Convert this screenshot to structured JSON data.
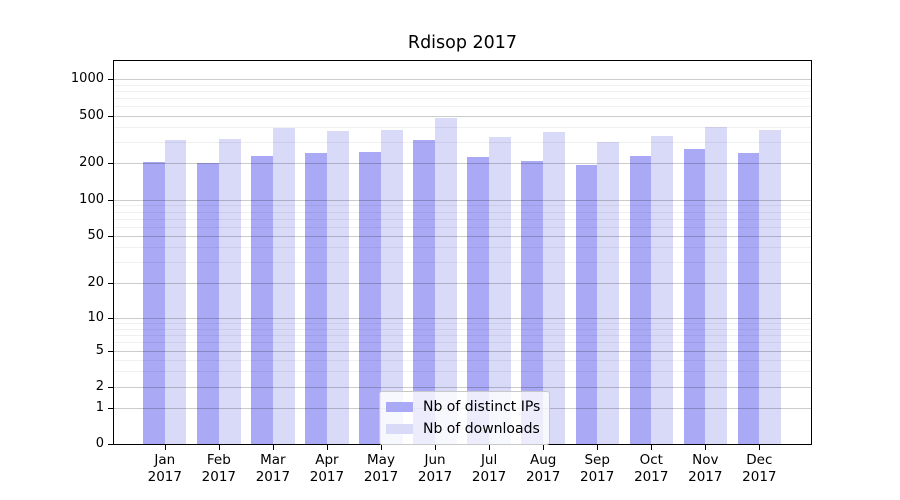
{
  "chart_data": {
    "type": "bar",
    "title": "Rdisop 2017",
    "categories": [
      "Jan",
      "Feb",
      "Mar",
      "Apr",
      "May",
      "Jun",
      "Jul",
      "Aug",
      "Sep",
      "Oct",
      "Nov",
      "Dec"
    ],
    "category_year": "2017",
    "series": [
      {
        "name": "Nb of distinct IPs",
        "color": "#a9a9f6",
        "values": [
          205,
          199,
          231,
          244,
          248,
          315,
          224,
          208,
          192,
          230,
          264,
          245
        ]
      },
      {
        "name": "Nb of downloads",
        "color": "#d9d9f8",
        "values": [
          311,
          320,
          392,
          376,
          382,
          480,
          329,
          364,
          300,
          339,
          406,
          383
        ]
      }
    ],
    "y_axis": {
      "ticks": [
        0,
        1,
        2,
        5,
        10,
        20,
        50,
        100,
        200,
        500,
        1000
      ],
      "minor_ticks": [
        3,
        4,
        6,
        7,
        8,
        9,
        30,
        40,
        60,
        70,
        80,
        90,
        300,
        400,
        600,
        700,
        800,
        900
      ],
      "scale": "log-like",
      "range": [
        0,
        1000
      ]
    },
    "xlabel": "",
    "ylabel": "",
    "grid": true,
    "legend_position": "bottom-center"
  }
}
